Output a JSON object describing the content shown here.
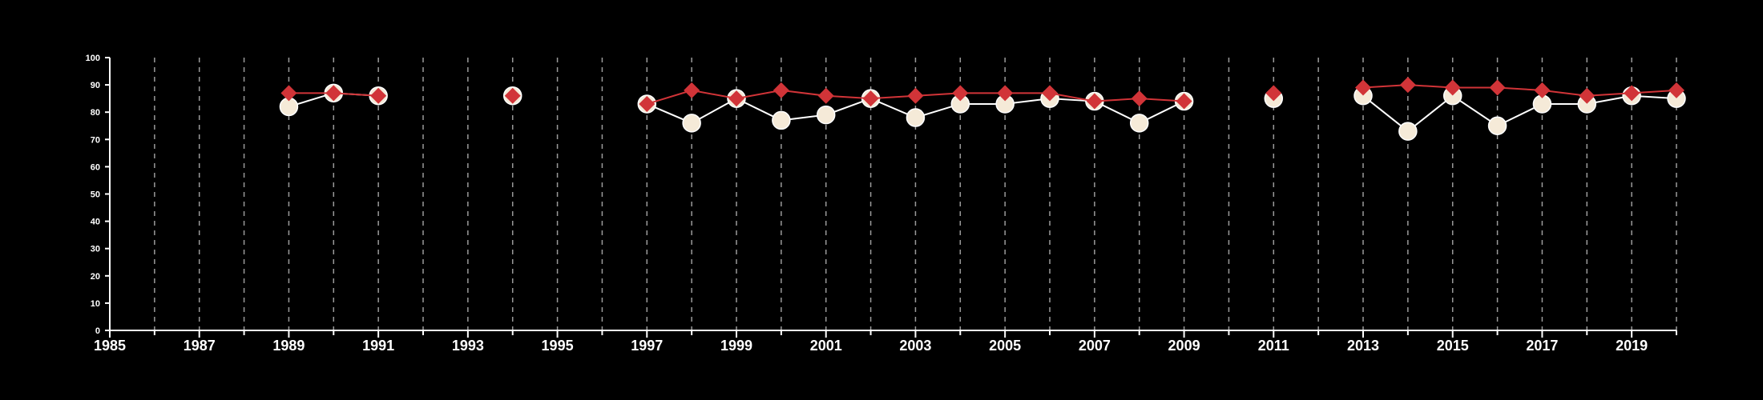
{
  "chart_data": {
    "type": "line",
    "title": "",
    "xlabel": "",
    "ylabel": "",
    "xlim": [
      1985,
      2020
    ],
    "ylim": [
      0,
      100
    ],
    "x_ticks": [
      "1985",
      "1987",
      "1989",
      "1991",
      "1993",
      "1995",
      "1997",
      "1999",
      "2001",
      "2003",
      "2005",
      "2007",
      "2009",
      "2011",
      "2013",
      "2015",
      "2017",
      "2019"
    ],
    "y_ticks": [
      "0",
      "10",
      "20",
      "30",
      "40",
      "50",
      "60",
      "70",
      "80",
      "90",
      "100"
    ],
    "grid": "vertical dashed lines at each year",
    "legend": "none",
    "series": [
      {
        "marker": "circle",
        "color": "#f5ead8",
        "line_color": "#ffffff",
        "points": [
          [
            1989,
            82
          ],
          [
            1990,
            87
          ],
          [
            1991,
            86
          ],
          [
            1994,
            86
          ],
          [
            1997,
            83
          ],
          [
            1998,
            76
          ],
          [
            1999,
            85
          ],
          [
            2000,
            77
          ],
          [
            2001,
            79
          ],
          [
            2002,
            85
          ],
          [
            2003,
            78
          ],
          [
            2004,
            83
          ],
          [
            2005,
            83
          ],
          [
            2006,
            85
          ],
          [
            2007,
            84
          ],
          [
            2008,
            76
          ],
          [
            2009,
            84
          ],
          [
            2011,
            85
          ],
          [
            2013,
            86
          ],
          [
            2014,
            73
          ],
          [
            2015,
            86
          ],
          [
            2016,
            75
          ],
          [
            2017,
            83
          ],
          [
            2018,
            83
          ],
          [
            2019,
            86
          ],
          [
            2020,
            85
          ]
        ]
      },
      {
        "marker": "diamond",
        "color": "#d13438",
        "line_color": "#d13438",
        "points": [
          [
            1989,
            87
          ],
          [
            1990,
            87
          ],
          [
            1991,
            86
          ],
          [
            1994,
            86
          ],
          [
            1997,
            83
          ],
          [
            1998,
            88
          ],
          [
            1999,
            85
          ],
          [
            2000,
            88
          ],
          [
            2001,
            86
          ],
          [
            2002,
            85
          ],
          [
            2003,
            86
          ],
          [
            2004,
            87
          ],
          [
            2005,
            87
          ],
          [
            2006,
            87
          ],
          [
            2007,
            84
          ],
          [
            2008,
            85
          ],
          [
            2009,
            84
          ],
          [
            2011,
            87
          ],
          [
            2013,
            89
          ],
          [
            2014,
            90
          ],
          [
            2015,
            89
          ],
          [
            2016,
            89
          ],
          [
            2017,
            88
          ],
          [
            2018,
            86
          ],
          [
            2019,
            87
          ],
          [
            2020,
            88
          ]
        ]
      }
    ]
  }
}
